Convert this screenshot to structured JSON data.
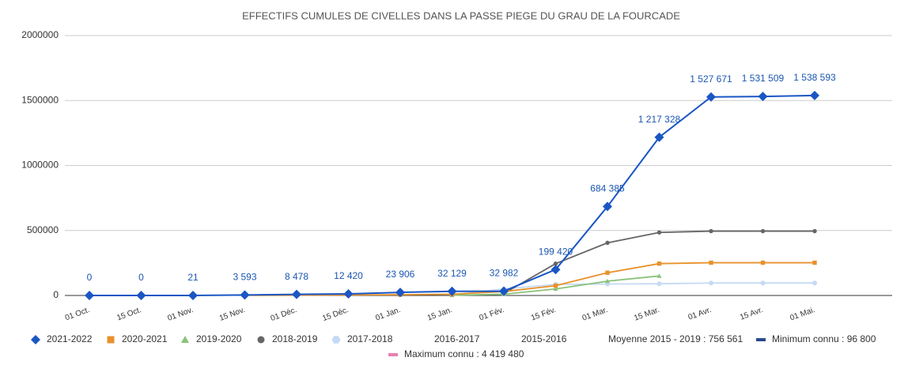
{
  "chart_data": {
    "type": "line",
    "title": "EFFECTIFS CUMULES DE CIVELLES DANS LA PASSE PIEGE DU GRAU DE LA FOURCADE",
    "categories": [
      "01 Oct.",
      "15 Oct.",
      "01 Nov.",
      "15 Nov.",
      "01 Déc.",
      "15 Déc.",
      "01 Jan.",
      "15 Jan.",
      "01 Fév.",
      "15 Fév.",
      "01 Mar.",
      "15 Mar.",
      "01 Avr.",
      "15 Avr.",
      "01 Mai."
    ],
    "ylim": [
      0,
      2000000
    ],
    "yticks": [
      0,
      500000,
      1000000,
      1500000,
      2000000
    ],
    "grid": true,
    "series": [
      {
        "name": "2021-2022",
        "color": "#1a56c4",
        "marker": "diamond",
        "values": [
          0,
          0,
          21,
          3593,
          8478,
          12420,
          23906,
          32129,
          32982,
          199420,
          684385,
          1217328,
          1527671,
          1531509,
          1538593
        ],
        "value_labels": [
          "0",
          "0",
          "21",
          "3 593",
          "8 478",
          "12 420",
          "23 906",
          "32 129",
          "32 982",
          "199 420",
          "684 385",
          "1 217 328",
          "1 527 671",
          "1 531 509",
          "1 538 593"
        ]
      },
      {
        "name": "2020-2021",
        "color": "#e8912d",
        "marker": "square",
        "values": [
          null,
          null,
          null,
          1000,
          2000,
          4000,
          6000,
          10000,
          30000,
          75000,
          175000,
          245000,
          252000,
          252000,
          252000
        ]
      },
      {
        "name": "2019-2020",
        "color": "#8ac27a",
        "marker": "triangle",
        "values": [
          null,
          null,
          null,
          null,
          null,
          null,
          null,
          2000,
          10000,
          50000,
          110000,
          150000,
          null,
          null,
          null
        ]
      },
      {
        "name": "2018-2019",
        "color": "#666666",
        "marker": "circle",
        "values": [
          null,
          null,
          null,
          null,
          null,
          null,
          null,
          null,
          15000,
          245000,
          405000,
          485000,
          495000,
          495000,
          495000
        ]
      },
      {
        "name": "2017-2018",
        "color": "#c6d9f5",
        "marker": "hexagon",
        "values": [
          null,
          null,
          null,
          null,
          null,
          null,
          null,
          5000,
          50000,
          85000,
          88000,
          90000,
          96000,
          96000,
          96000
        ]
      },
      {
        "name": "2016-2017",
        "values": [
          null,
          null,
          null,
          null,
          null,
          null,
          null,
          null,
          null,
          null,
          null,
          null,
          null,
          null,
          null
        ]
      },
      {
        "name": "2015-2016",
        "values": [
          null,
          null,
          null,
          null,
          null,
          null,
          null,
          null,
          null,
          null,
          null,
          null,
          null,
          null,
          null
        ]
      },
      {
        "name": "Moyenne 2015 - 2019 : 756 561",
        "values": [
          null,
          null,
          null,
          null,
          null,
          null,
          null,
          null,
          null,
          null,
          null,
          null,
          null,
          null,
          null
        ]
      },
      {
        "name": "Minimum connu : 96 800",
        "color": "#2b4a8b",
        "marker": "line",
        "values": [
          null,
          null,
          null,
          null,
          null,
          null,
          null,
          null,
          null,
          null,
          null,
          null,
          null,
          null,
          null
        ]
      },
      {
        "name": "Maximum connu : 4 419 480",
        "color": "#e97fb0",
        "marker": "line",
        "values": [
          null,
          null,
          null,
          null,
          null,
          null,
          null,
          null,
          null,
          null,
          null,
          null,
          null,
          null,
          null
        ]
      }
    ]
  }
}
